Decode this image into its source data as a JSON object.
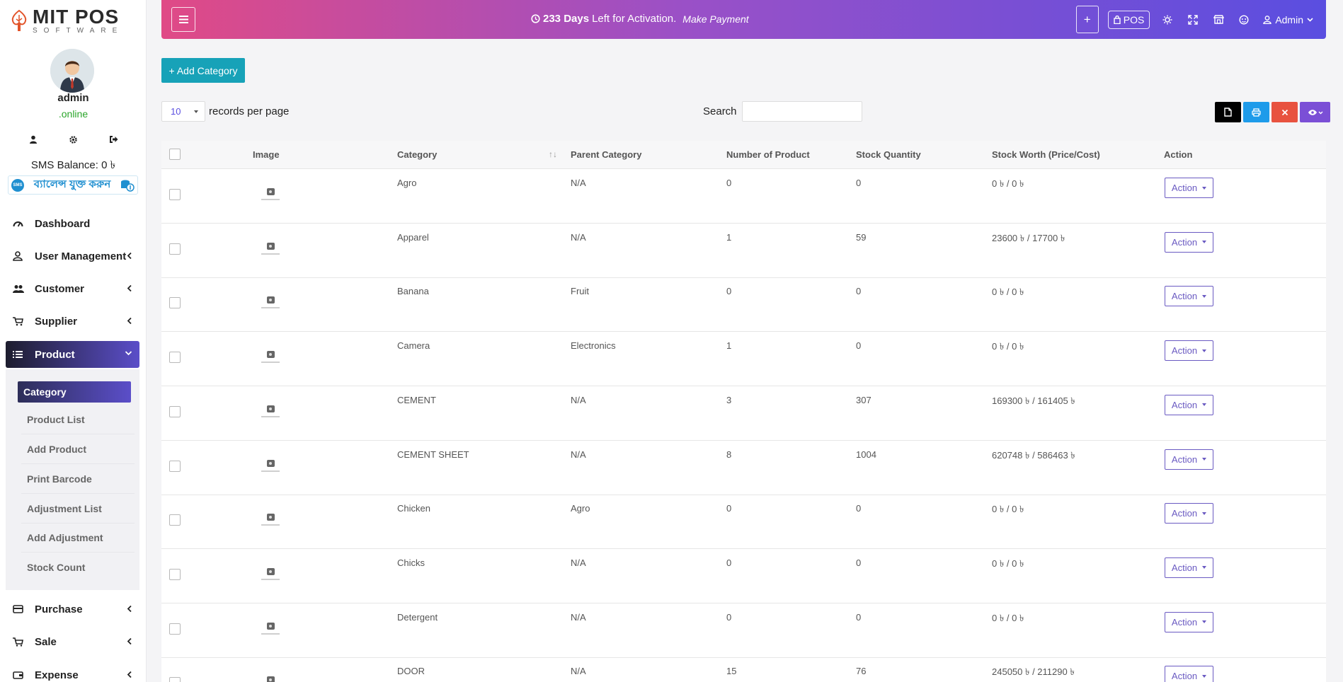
{
  "brand": {
    "name": "MIT POS",
    "sub": "SOFTWARE"
  },
  "user": {
    "name": "admin",
    "status": ".online",
    "sms_balance": "SMS Balance: 0 ৳",
    "balance_banner": "ব্যালেন্স যুক্ত করুন",
    "banner_badge": "SMS"
  },
  "nav": [
    {
      "label": "Dashboard",
      "icon": "gauge-icon"
    },
    {
      "label": "User Management",
      "icon": "user-icon"
    },
    {
      "label": "Customer",
      "icon": "users-icon"
    },
    {
      "label": "Supplier",
      "icon": "cart-icon"
    },
    {
      "label": "Product",
      "icon": "list-icon"
    },
    {
      "label": "Purchase",
      "icon": "card-icon"
    },
    {
      "label": "Sale",
      "icon": "basket-icon"
    },
    {
      "label": "Expense",
      "icon": "wallet-icon"
    }
  ],
  "subnav": [
    "Category",
    "Product List",
    "Add Product",
    "Print Barcode",
    "Adjustment List",
    "Add Adjustment",
    "Stock Count"
  ],
  "topbar": {
    "days": "233 Days",
    "activation_text": "Left for Activation.",
    "payment_link": "Make Payment",
    "plus": "+",
    "pos": "POS",
    "admin": "Admin"
  },
  "toolbar": {
    "add_category": "+ Add Category",
    "records_value": "10",
    "records_label": "records per page",
    "search_label": "Search",
    "search_value": ""
  },
  "colors": {
    "accent": "#5a4ee0",
    "topbar_start": "#e04a86",
    "add_button": "#17a2b8",
    "action_border": "#6a5ac2"
  },
  "table": {
    "headers": [
      "Image",
      "Category",
      "Parent Category",
      "Number of Product",
      "Stock Quantity",
      "Stock Worth (Price/Cost)",
      "Action"
    ],
    "sort_indicator": "↑↓",
    "action_label": "Action",
    "rows": [
      {
        "category": "Agro",
        "parent": "N/A",
        "products": "0",
        "stock": "0",
        "worth": "0 ৳ / 0 ৳"
      },
      {
        "category": "Apparel",
        "parent": "N/A",
        "products": "1",
        "stock": "59",
        "worth": "23600 ৳ / 17700 ৳"
      },
      {
        "category": "Banana",
        "parent": "Fruit",
        "products": "0",
        "stock": "0",
        "worth": "0 ৳ / 0 ৳"
      },
      {
        "category": "Camera",
        "parent": "Electronics",
        "products": "1",
        "stock": "0",
        "worth": "0 ৳ / 0 ৳"
      },
      {
        "category": "CEMENT",
        "parent": "N/A",
        "products": "3",
        "stock": "307",
        "worth": "169300 ৳ / 161405 ৳"
      },
      {
        "category": "CEMENT SHEET",
        "parent": "N/A",
        "products": "8",
        "stock": "1004",
        "worth": "620748 ৳ / 586463 ৳"
      },
      {
        "category": "Chicken",
        "parent": "Agro",
        "products": "0",
        "stock": "0",
        "worth": "0 ৳ / 0 ৳"
      },
      {
        "category": "Chicks",
        "parent": "N/A",
        "products": "0",
        "stock": "0",
        "worth": "0 ৳ / 0 ৳"
      },
      {
        "category": "Detergent",
        "parent": "N/A",
        "products": "0",
        "stock": "0",
        "worth": "0 ৳ / 0 ৳"
      },
      {
        "category": "DOOR",
        "parent": "N/A",
        "products": "15",
        "stock": "76",
        "worth": "245050 ৳ / 211290 ৳"
      }
    ]
  }
}
